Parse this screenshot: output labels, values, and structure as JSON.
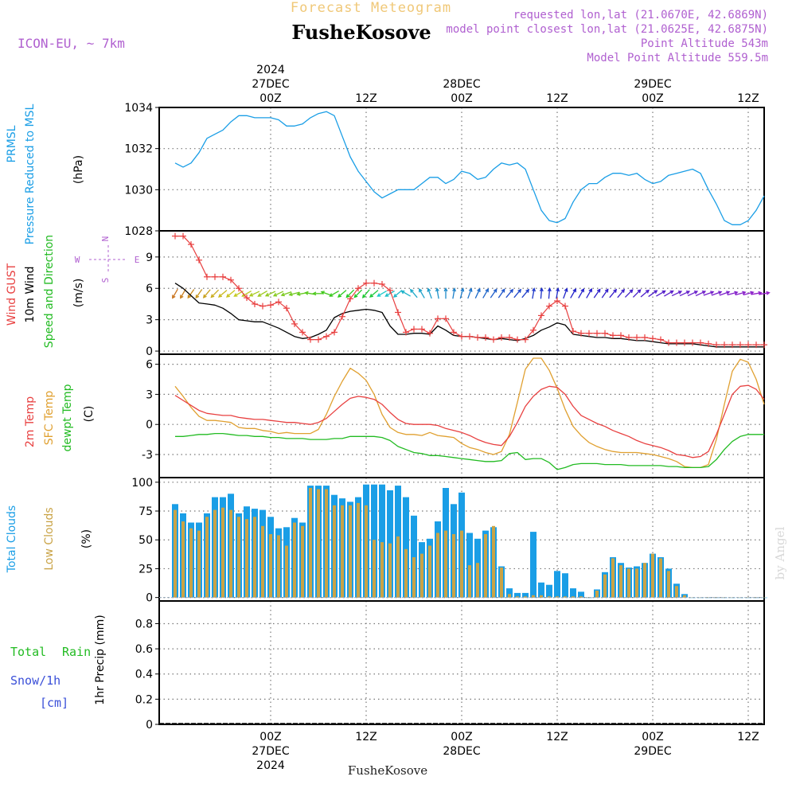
{
  "header": {
    "title": "Forecast Meteogram",
    "location": "FusheKosove",
    "model": "ICON-EU, ~ 7km",
    "requested_point": "requested lon,lat (21.0670E, 42.6869N)",
    "closest_point": "model point closest lon,lat (21.0625E, 42.6875N)",
    "point_altitude": "Point Altitude 543m",
    "model_point_altitude": "Model Point Altitude 559.5m",
    "credit": "by Angel",
    "footer_location": "FusheKosove"
  },
  "colors": {
    "pressure": "#1a9ee6",
    "gust": "#e84040",
    "wind": "#000000",
    "temp2m": "#e84040",
    "sfc_temp": "#e0a030",
    "dewpt": "#22bb22",
    "total_clouds": "#1a9ee6",
    "low_clouds": "#c9a346",
    "rain": "#22bb22",
    "snow": "#3a4fd8",
    "title": "#f0c878",
    "info": "#b060d0"
  },
  "chart_data": [
    {
      "type": "line",
      "title": "PRMSL Pressure Reduced to MSL",
      "ylabel": "(hPa)",
      "ylabel_lines": [
        "PRMSL",
        "Pressure Reduced to MSL"
      ],
      "ylim": [
        1028,
        1034
      ],
      "yticks": [
        1028,
        1030,
        1032,
        1034
      ],
      "series": [
        {
          "name": "Pressure Reduced to MSL",
          "values": [
            1031.3,
            1031.1,
            1031.3,
            1031.8,
            1032.5,
            1032.7,
            1032.9,
            1033.3,
            1033.6,
            1033.6,
            1033.5,
            1033.5,
            1033.5,
            1033.4,
            1033.1,
            1033.1,
            1033.2,
            1033.5,
            1033.7,
            1033.8,
            1033.6,
            1032.6,
            1031.6,
            1030.9,
            1030.4,
            1029.9,
            1029.6,
            1029.8,
            1030.0,
            1030.0,
            1030.0,
            1030.3,
            1030.6,
            1030.6,
            1030.3,
            1030.5,
            1030.9,
            1030.8,
            1030.5,
            1030.6,
            1031.0,
            1031.3,
            1031.2,
            1031.3,
            1031.0,
            1030.0,
            1029.0,
            1028.5,
            1028.4,
            1028.6,
            1029.4,
            1030.0,
            1030.3,
            1030.3,
            1030.6,
            1030.8,
            1030.8,
            1030.7,
            1030.8,
            1030.5,
            1030.3,
            1030.4,
            1030.7,
            1030.8,
            1030.9,
            1031.0,
            1030.8,
            1030.0,
            1029.3,
            1028.5,
            1028.3,
            1028.3,
            1028.5,
            1029.0,
            1029.7
          ]
        }
      ]
    },
    {
      "type": "line",
      "title": "Wind GUST / 10m Wind Speed and Direction",
      "ylabel": "(m/s)",
      "ylim": [
        -0.3,
        11.5
      ],
      "yticks": [
        0,
        3,
        6,
        9
      ],
      "compass": [
        "N",
        "S",
        "W",
        "E"
      ],
      "series": [
        {
          "name": "Wind GUST",
          "values": [
            11.0,
            11.0,
            10.2,
            8.7,
            7.1,
            7.1,
            7.1,
            6.8,
            6.0,
            5.1,
            4.5,
            4.3,
            4.4,
            4.7,
            4.1,
            2.6,
            1.8,
            1.1,
            1.1,
            1.4,
            1.8,
            3.3,
            5.0,
            6.0,
            6.5,
            6.5,
            6.4,
            5.8,
            3.7,
            1.8,
            2.1,
            2.1,
            1.7,
            3.1,
            3.1,
            1.8,
            1.4,
            1.4,
            1.3,
            1.3,
            1.1,
            1.3,
            1.3,
            1.1,
            1.1,
            2.0,
            3.4,
            4.3,
            4.8,
            4.3,
            1.9,
            1.7,
            1.7,
            1.7,
            1.7,
            1.5,
            1.5,
            1.3,
            1.3,
            1.3,
            1.2,
            1.1,
            0.8,
            0.8,
            0.8,
            0.8,
            0.8,
            0.7,
            0.6,
            0.6,
            0.6,
            0.6,
            0.6,
            0.6,
            0.6
          ]
        },
        {
          "name": "10m Wind",
          "values": [
            6.5,
            6.0,
            5.3,
            4.6,
            4.5,
            4.4,
            4.1,
            3.6,
            3.0,
            2.9,
            2.8,
            2.8,
            2.5,
            2.2,
            1.8,
            1.4,
            1.2,
            1.3,
            1.6,
            2.0,
            3.2,
            3.6,
            3.8,
            3.9,
            4.0,
            3.9,
            3.7,
            2.4,
            1.6,
            1.6,
            1.7,
            1.7,
            1.6,
            2.4,
            2.0,
            1.5,
            1.4,
            1.4,
            1.3,
            1.2,
            1.1,
            1.2,
            1.1,
            1.0,
            1.2,
            1.5,
            2.0,
            2.3,
            2.7,
            2.5,
            1.6,
            1.5,
            1.4,
            1.3,
            1.3,
            1.2,
            1.2,
            1.1,
            1.0,
            1.0,
            0.9,
            0.8,
            0.7,
            0.7,
            0.7,
            0.7,
            0.6,
            0.5,
            0.4,
            0.4,
            0.4,
            0.4,
            0.4,
            0.4,
            0.4
          ]
        },
        {
          "name": "Speed and Direction",
          "direction_to_deg": [
            210,
            210,
            215,
            215,
            220,
            225,
            230,
            230,
            240,
            240,
            245,
            240,
            245,
            245,
            250,
            255,
            260,
            280,
            270,
            290,
            240,
            230,
            225,
            225,
            220,
            230,
            240,
            240,
            230,
            300,
            320,
            330,
            340,
            350,
            0,
            10,
            15,
            20,
            25,
            30,
            35,
            35,
            40,
            40,
            40,
            10,
            5,
            5,
            10,
            20,
            30,
            30,
            30,
            35,
            35,
            40,
            40,
            45,
            45,
            50,
            55,
            60,
            60,
            65,
            65,
            65,
            65,
            70,
            70,
            70,
            75,
            75,
            75,
            80,
            80
          ]
        }
      ]
    },
    {
      "type": "line",
      "title": "2m Temp / SFC Temp / dewpt Temp",
      "ylabel": "(C)",
      "ylim": [
        -5.3,
        7.0
      ],
      "yticks": [
        -3,
        0,
        3,
        6
      ],
      "series": [
        {
          "name": "2m Temp",
          "values": [
            2.9,
            2.4,
            1.9,
            1.4,
            1.1,
            1.0,
            0.9,
            0.9,
            0.7,
            0.6,
            0.5,
            0.5,
            0.4,
            0.3,
            0.2,
            0.2,
            0.1,
            0.0,
            0.2,
            0.6,
            1.3,
            2.0,
            2.6,
            2.8,
            2.7,
            2.5,
            2.0,
            1.2,
            0.5,
            0.1,
            0.0,
            0.0,
            0.0,
            -0.1,
            -0.4,
            -0.6,
            -0.8,
            -1.1,
            -1.5,
            -1.8,
            -2.0,
            -2.1,
            -1.2,
            0.2,
            1.8,
            2.8,
            3.5,
            3.8,
            3.7,
            3.0,
            1.8,
            0.9,
            0.5,
            0.1,
            -0.2,
            -0.6,
            -0.9,
            -1.2,
            -1.6,
            -1.9,
            -2.1,
            -2.3,
            -2.6,
            -3.0,
            -3.1,
            -3.3,
            -3.2,
            -2.7,
            -1.0,
            1.0,
            3.0,
            3.8,
            3.9,
            3.5,
            2.5
          ]
        },
        {
          "name": "SFC Temp",
          "values": [
            3.8,
            2.8,
            1.7,
            0.8,
            0.4,
            0.4,
            0.3,
            0.2,
            -0.3,
            -0.4,
            -0.4,
            -0.6,
            -0.7,
            -0.9,
            -0.8,
            -0.9,
            -0.9,
            -0.9,
            -0.5,
            1.0,
            2.8,
            4.3,
            5.6,
            5.1,
            4.4,
            3.0,
            1.0,
            -0.3,
            -0.8,
            -1.0,
            -1.0,
            -1.1,
            -0.8,
            -1.1,
            -1.2,
            -1.3,
            -1.9,
            -2.3,
            -2.5,
            -2.8,
            -3.0,
            -2.7,
            -1.0,
            2.2,
            5.5,
            6.6,
            6.6,
            5.4,
            3.6,
            1.5,
            -0.2,
            -1.1,
            -1.8,
            -2.2,
            -2.5,
            -2.7,
            -2.8,
            -2.8,
            -2.8,
            -2.9,
            -3.0,
            -3.2,
            -3.4,
            -3.7,
            -4.2,
            -4.3,
            -4.3,
            -4.0,
            -1.5,
            2.0,
            5.3,
            6.5,
            6.2,
            4.5,
            2.0
          ]
        },
        {
          "name": "dewpt Temp",
          "values": [
            -1.2,
            -1.2,
            -1.1,
            -1.0,
            -1.0,
            -0.9,
            -0.9,
            -1.0,
            -1.1,
            -1.1,
            -1.2,
            -1.2,
            -1.3,
            -1.3,
            -1.4,
            -1.4,
            -1.4,
            -1.5,
            -1.5,
            -1.5,
            -1.4,
            -1.4,
            -1.2,
            -1.2,
            -1.2,
            -1.2,
            -1.3,
            -1.6,
            -2.2,
            -2.5,
            -2.8,
            -2.9,
            -3.1,
            -3.1,
            -3.2,
            -3.3,
            -3.4,
            -3.5,
            -3.6,
            -3.7,
            -3.7,
            -3.6,
            -2.9,
            -2.8,
            -3.5,
            -3.4,
            -3.4,
            -3.8,
            -4.5,
            -4.3,
            -4.0,
            -3.9,
            -3.9,
            -3.9,
            -4.0,
            -4.0,
            -4.0,
            -4.1,
            -4.1,
            -4.1,
            -4.1,
            -4.1,
            -4.2,
            -4.2,
            -4.3,
            -4.3,
            -4.3,
            -4.2,
            -3.5,
            -2.5,
            -1.7,
            -1.2,
            -1.0,
            -1.0,
            -1.0
          ]
        }
      ]
    },
    {
      "type": "bar",
      "title": "Total Clouds / Low Clouds",
      "ylabel": "(%)",
      "ylim": [
        -3,
        104
      ],
      "yticks": [
        0,
        25,
        50,
        75,
        100
      ],
      "series": [
        {
          "name": "Total Clouds",
          "values": [
            81,
            73,
            65,
            65,
            73,
            87,
            87,
            90,
            73,
            79,
            77,
            76,
            70,
            60,
            61,
            69,
            65,
            97,
            97,
            97,
            89,
            86,
            83,
            87,
            98,
            98,
            98,
            93,
            97,
            87,
            71,
            48,
            51,
            66,
            95,
            81,
            91,
            56,
            51,
            58,
            61,
            27,
            8,
            4,
            4,
            57,
            13,
            11,
            23,
            21,
            8,
            5,
            0,
            7,
            22,
            35,
            30,
            26,
            27,
            30,
            38,
            35,
            25,
            12,
            3,
            0,
            0,
            0,
            0,
            0,
            0,
            0,
            0,
            0,
            0
          ]
        },
        {
          "name": "Low Clouds",
          "values": [
            76,
            66,
            60,
            58,
            70,
            76,
            78,
            76,
            70,
            68,
            70,
            62,
            55,
            54,
            45,
            65,
            62,
            95,
            94,
            94,
            80,
            80,
            80,
            82,
            80,
            50,
            48,
            47,
            53,
            42,
            35,
            38,
            45,
            56,
            58,
            55,
            58,
            28,
            30,
            55,
            62,
            26,
            3,
            1,
            1,
            2,
            2,
            1,
            1,
            1,
            1,
            1,
            0,
            6,
            20,
            34,
            28,
            25,
            25,
            30,
            38,
            34,
            23,
            10,
            2,
            0,
            0,
            0,
            0,
            0,
            0,
            0,
            0,
            0,
            0
          ]
        }
      ]
    },
    {
      "type": "bar",
      "title": "1hr Precip",
      "ylabel": "1hr Precip (mm)",
      "ylim": [
        0,
        0.98
      ],
      "yticks": [
        0,
        0.2,
        0.4,
        0.6,
        0.8
      ],
      "legend": [
        {
          "name": "Total",
          "color_key": "rain"
        },
        {
          "name": "Rain",
          "color_key": "rain"
        },
        {
          "name": "Snow/1h",
          "color_key": "snow"
        },
        {
          "name": "[cm]",
          "color_key": "snow"
        }
      ],
      "series": [
        {
          "name": "Total Rain",
          "values": [
            0,
            0,
            0,
            0,
            0,
            0,
            0,
            0,
            0,
            0,
            0,
            0,
            0,
            0,
            0,
            0,
            0,
            0,
            0,
            0,
            0,
            0,
            0,
            0,
            0,
            0,
            0,
            0,
            0,
            0,
            0,
            0,
            0,
            0,
            0,
            0,
            0,
            0,
            0,
            0,
            0,
            0,
            0,
            0,
            0,
            0,
            0,
            0,
            0,
            0,
            0,
            0,
            0,
            0,
            0,
            0,
            0,
            0,
            0,
            0,
            0,
            0,
            0,
            0,
            0,
            0,
            0,
            0,
            0,
            0,
            0,
            0,
            0,
            0,
            0
          ]
        },
        {
          "name": "Snow/1h",
          "values": [
            0,
            0,
            0,
            0,
            0,
            0,
            0,
            0,
            0,
            0,
            0,
            0,
            0,
            0,
            0,
            0,
            0,
            0,
            0,
            0,
            0,
            0,
            0,
            0,
            0,
            0,
            0,
            0,
            0,
            0,
            0,
            0,
            0,
            0,
            0,
            0,
            0,
            0,
            0,
            0,
            0,
            0,
            0,
            0,
            0,
            0,
            0,
            0,
            0,
            0,
            0,
            0,
            0,
            0,
            0,
            0,
            0,
            0,
            0,
            0,
            0,
            0,
            0,
            0,
            0,
            0,
            0,
            0,
            0,
            0,
            0,
            0,
            0,
            0,
            0
          ]
        }
      ]
    }
  ],
  "time_axis": {
    "hours": [
      -14,
      62
    ],
    "top_labels": [
      {
        "hour": 0,
        "lines": [
          "2024",
          "27DEC",
          "00Z"
        ]
      },
      {
        "hour": 12,
        "lines": [
          "12Z"
        ]
      },
      {
        "hour": 24,
        "lines": [
          "28DEC",
          "00Z"
        ]
      },
      {
        "hour": 36,
        "lines": [
          "12Z"
        ]
      },
      {
        "hour": 48,
        "lines": [
          "29DEC",
          "00Z"
        ]
      },
      {
        "hour": 60,
        "lines": [
          "12Z"
        ]
      }
    ],
    "bottom_labels": [
      {
        "hour": 0,
        "lines": [
          "00Z",
          "27DEC",
          "2024"
        ]
      },
      {
        "hour": 12,
        "lines": [
          "12Z"
        ]
      },
      {
        "hour": 24,
        "lines": [
          "00Z",
          "28DEC"
        ]
      },
      {
        "hour": 36,
        "lines": [
          "12Z"
        ]
      },
      {
        "hour": 48,
        "lines": [
          "00Z",
          "29DEC"
        ]
      },
      {
        "hour": 60,
        "lines": [
          "12Z"
        ]
      }
    ]
  }
}
